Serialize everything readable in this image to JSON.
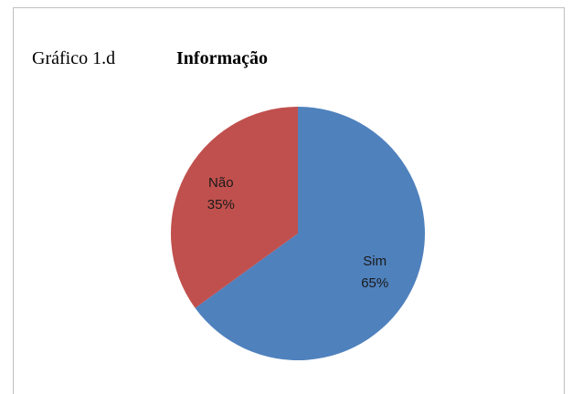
{
  "chart_data": {
    "type": "pie",
    "figure_label": "Gráfico 1.d",
    "title": "Informação",
    "categories": [
      "Sim",
      "Não"
    ],
    "values": [
      65,
      35
    ],
    "value_labels": [
      "65%",
      "35%"
    ],
    "colors": [
      "#4f81bd",
      "#c0504d"
    ]
  }
}
